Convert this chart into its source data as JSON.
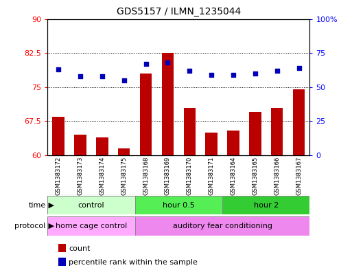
{
  "title": "GDS5157 / ILMN_1235044",
  "samples": [
    "GSM1383172",
    "GSM1383173",
    "GSM1383174",
    "GSM1383175",
    "GSM1383168",
    "GSM1383169",
    "GSM1383170",
    "GSM1383171",
    "GSM1383164",
    "GSM1383165",
    "GSM1383166",
    "GSM1383167"
  ],
  "counts": [
    68.5,
    64.5,
    64.0,
    61.5,
    78.0,
    82.5,
    70.5,
    65.0,
    65.5,
    69.5,
    70.5,
    74.5
  ],
  "percentiles": [
    63,
    58,
    58,
    55,
    67,
    68,
    62,
    59,
    59,
    60,
    62,
    64
  ],
  "ylim_left": [
    60,
    90
  ],
  "ylim_right": [
    0,
    100
  ],
  "yticks_left": [
    60,
    67.5,
    75,
    82.5,
    90
  ],
  "yticks_right": [
    0,
    25,
    50,
    75,
    100
  ],
  "ytick_labels_left": [
    "60",
    "67.5",
    "75",
    "82.5",
    "90"
  ],
  "ytick_labels_right": [
    "0",
    "25",
    "50",
    "75",
    "100%"
  ],
  "bar_color": "#bb0000",
  "dot_color": "#0000bb",
  "time_groups": [
    {
      "label": "control",
      "start": 0,
      "end": 4,
      "color": "#ccffcc"
    },
    {
      "label": "hour 0.5",
      "start": 4,
      "end": 8,
      "color": "#55ee55"
    },
    {
      "label": "hour 2",
      "start": 8,
      "end": 12,
      "color": "#33cc33"
    }
  ],
  "protocol_groups": [
    {
      "label": "home cage control",
      "start": 0,
      "end": 4,
      "color": "#ffaaff"
    },
    {
      "label": "auditory fear conditioning",
      "start": 4,
      "end": 12,
      "color": "#ee88ee"
    }
  ],
  "grid_color": "#000000",
  "bg_color": "#ffffff",
  "plot_bg": "#ffffff",
  "bar_width": 0.55,
  "legend_items": [
    {
      "color": "#bb0000",
      "label": "count"
    },
    {
      "color": "#0000bb",
      "label": "percentile rank within the sample"
    }
  ],
  "sample_bg": "#cccccc",
  "time_label": "time",
  "protocol_label": "protocol"
}
